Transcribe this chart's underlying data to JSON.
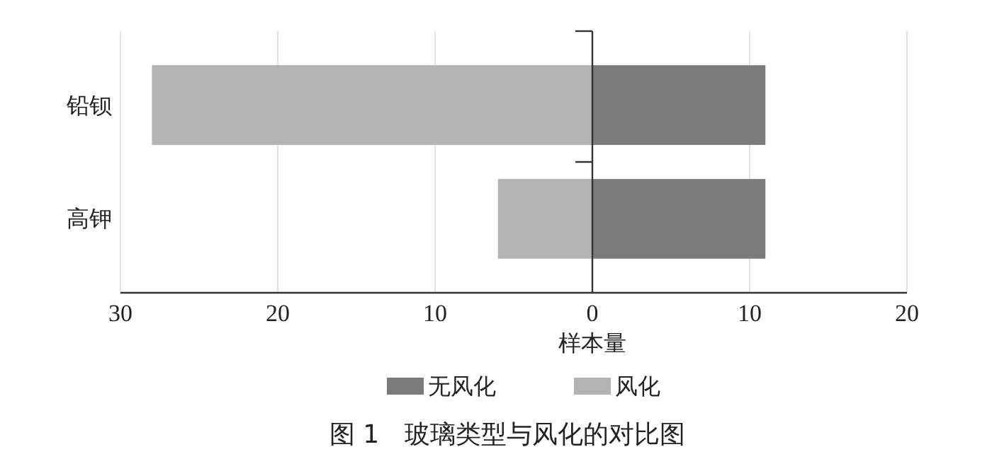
{
  "chart_data": {
    "type": "bar",
    "orientation": "horizontal",
    "stacked": true,
    "title": "图 1　玻璃类型与风化的对比图",
    "xlabel": "样本量",
    "categories": [
      "铅钡",
      "高钾"
    ],
    "series": [
      {
        "name": "无风化",
        "color": "#7b7b7b",
        "values": [
          11,
          11
        ]
      },
      {
        "name": "风化",
        "color": "#b3b3b3",
        "values": [
          -28,
          -6
        ]
      }
    ],
    "xlim": [
      -30,
      20
    ],
    "xticks": [
      {
        "value": -30,
        "label": "30"
      },
      {
        "value": -20,
        "label": "20"
      },
      {
        "value": -10,
        "label": "10"
      },
      0,
      10,
      20
    ],
    "grid": "x",
    "legend": "bottom"
  }
}
